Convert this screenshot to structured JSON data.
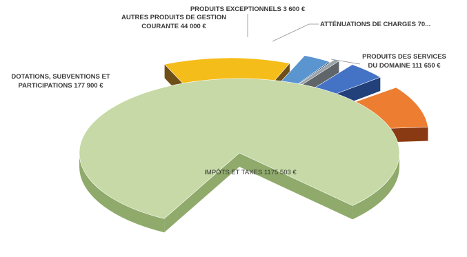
{
  "chart_data": {
    "type": "pie",
    "style": "3d-exploded",
    "title": "",
    "legend": "none",
    "slices": [
      {
        "label_lines": [
          "IMPÔTS ET TAXES 1175 503 €"
        ],
        "value": 1175503,
        "color": "#c6d9a6",
        "dark": "#8faa6b"
      },
      {
        "label_lines": [
          "DOTATIONS, SUBVENTIONS ET",
          "PARTICIPATIONS 177 900 €"
        ],
        "value": 177900,
        "color": "#f5bd1a",
        "dark": "#6e4f18"
      },
      {
        "label_lines": [
          "AUTRES PRODUITS DE GESTION",
          "COURANTE 44 000 €"
        ],
        "value": 44000,
        "color": "#5a95d0",
        "dark": "#26426a"
      },
      {
        "label_lines": [
          "PRODUITS EXCEPTIONNELS 3 600 €"
        ],
        "value": 3600,
        "color": "#9aa3a8",
        "dark": "#5f6569"
      },
      {
        "label_lines": [
          "ATTÉNUATIONS DE CHARGES 70..."
        ],
        "value": 70000,
        "color": "#4472c4",
        "dark": "#22407a"
      },
      {
        "label_lines": [
          "PRODUITS DES SERVICES",
          "DU DOMAINE 111 650 €"
        ],
        "value": 111650,
        "color": "#ed7d31",
        "dark": "#8a3a12"
      }
    ]
  }
}
